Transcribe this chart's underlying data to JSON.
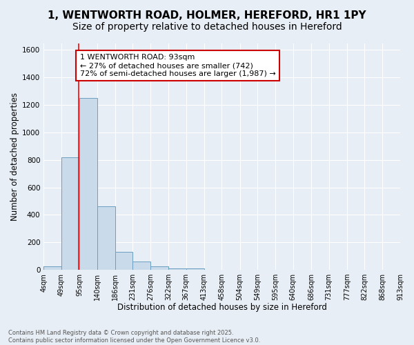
{
  "title": "1, WENTWORTH ROAD, HOLMER, HEREFORD, HR1 1PY",
  "subtitle": "Size of property relative to detached houses in Hereford",
  "xlabel": "Distribution of detached houses by size in Hereford",
  "ylabel": "Number of detached properties",
  "bar_values": [
    25,
    820,
    1250,
    460,
    130,
    60,
    25,
    12,
    12,
    0,
    0,
    0,
    0,
    0,
    0,
    0,
    0,
    0,
    0,
    0
  ],
  "bar_color": "#c9daea",
  "bar_edge_color": "#6a9ec0",
  "bin_edges": [
    4,
    49,
    95,
    140,
    186,
    231,
    276,
    322,
    367,
    413,
    458,
    504,
    549,
    595,
    640,
    686,
    731,
    777,
    822,
    868,
    913
  ],
  "x_tick_labels": [
    "4sqm",
    "49sqm",
    "95sqm",
    "140sqm",
    "186sqm",
    "231sqm",
    "276sqm",
    "322sqm",
    "367sqm",
    "413sqm",
    "458sqm",
    "504sqm",
    "549sqm",
    "595sqm",
    "640sqm",
    "686sqm",
    "731sqm",
    "777sqm",
    "822sqm",
    "868sqm",
    "913sqm"
  ],
  "ylim": [
    0,
    1650
  ],
  "yticks": [
    0,
    200,
    400,
    600,
    800,
    1000,
    1200,
    1400,
    1600
  ],
  "red_line_x": 93,
  "annotation_text": "1 WENTWORTH ROAD: 93sqm\n← 27% of detached houses are smaller (742)\n72% of semi-detached houses are larger (1,987) →",
  "annotation_edge_color": "#cc0000",
  "footer_text": "Contains HM Land Registry data © Crown copyright and database right 2025.\nContains public sector information licensed under the Open Government Licence v3.0.",
  "background_color": "#e8eef5",
  "grid_color": "#ffffff",
  "title_fontsize": 11,
  "subtitle_fontsize": 10,
  "tick_fontsize": 7,
  "ylabel_fontsize": 8.5,
  "xlabel_fontsize": 8.5,
  "footer_fontsize": 6,
  "annotation_fontsize": 8
}
